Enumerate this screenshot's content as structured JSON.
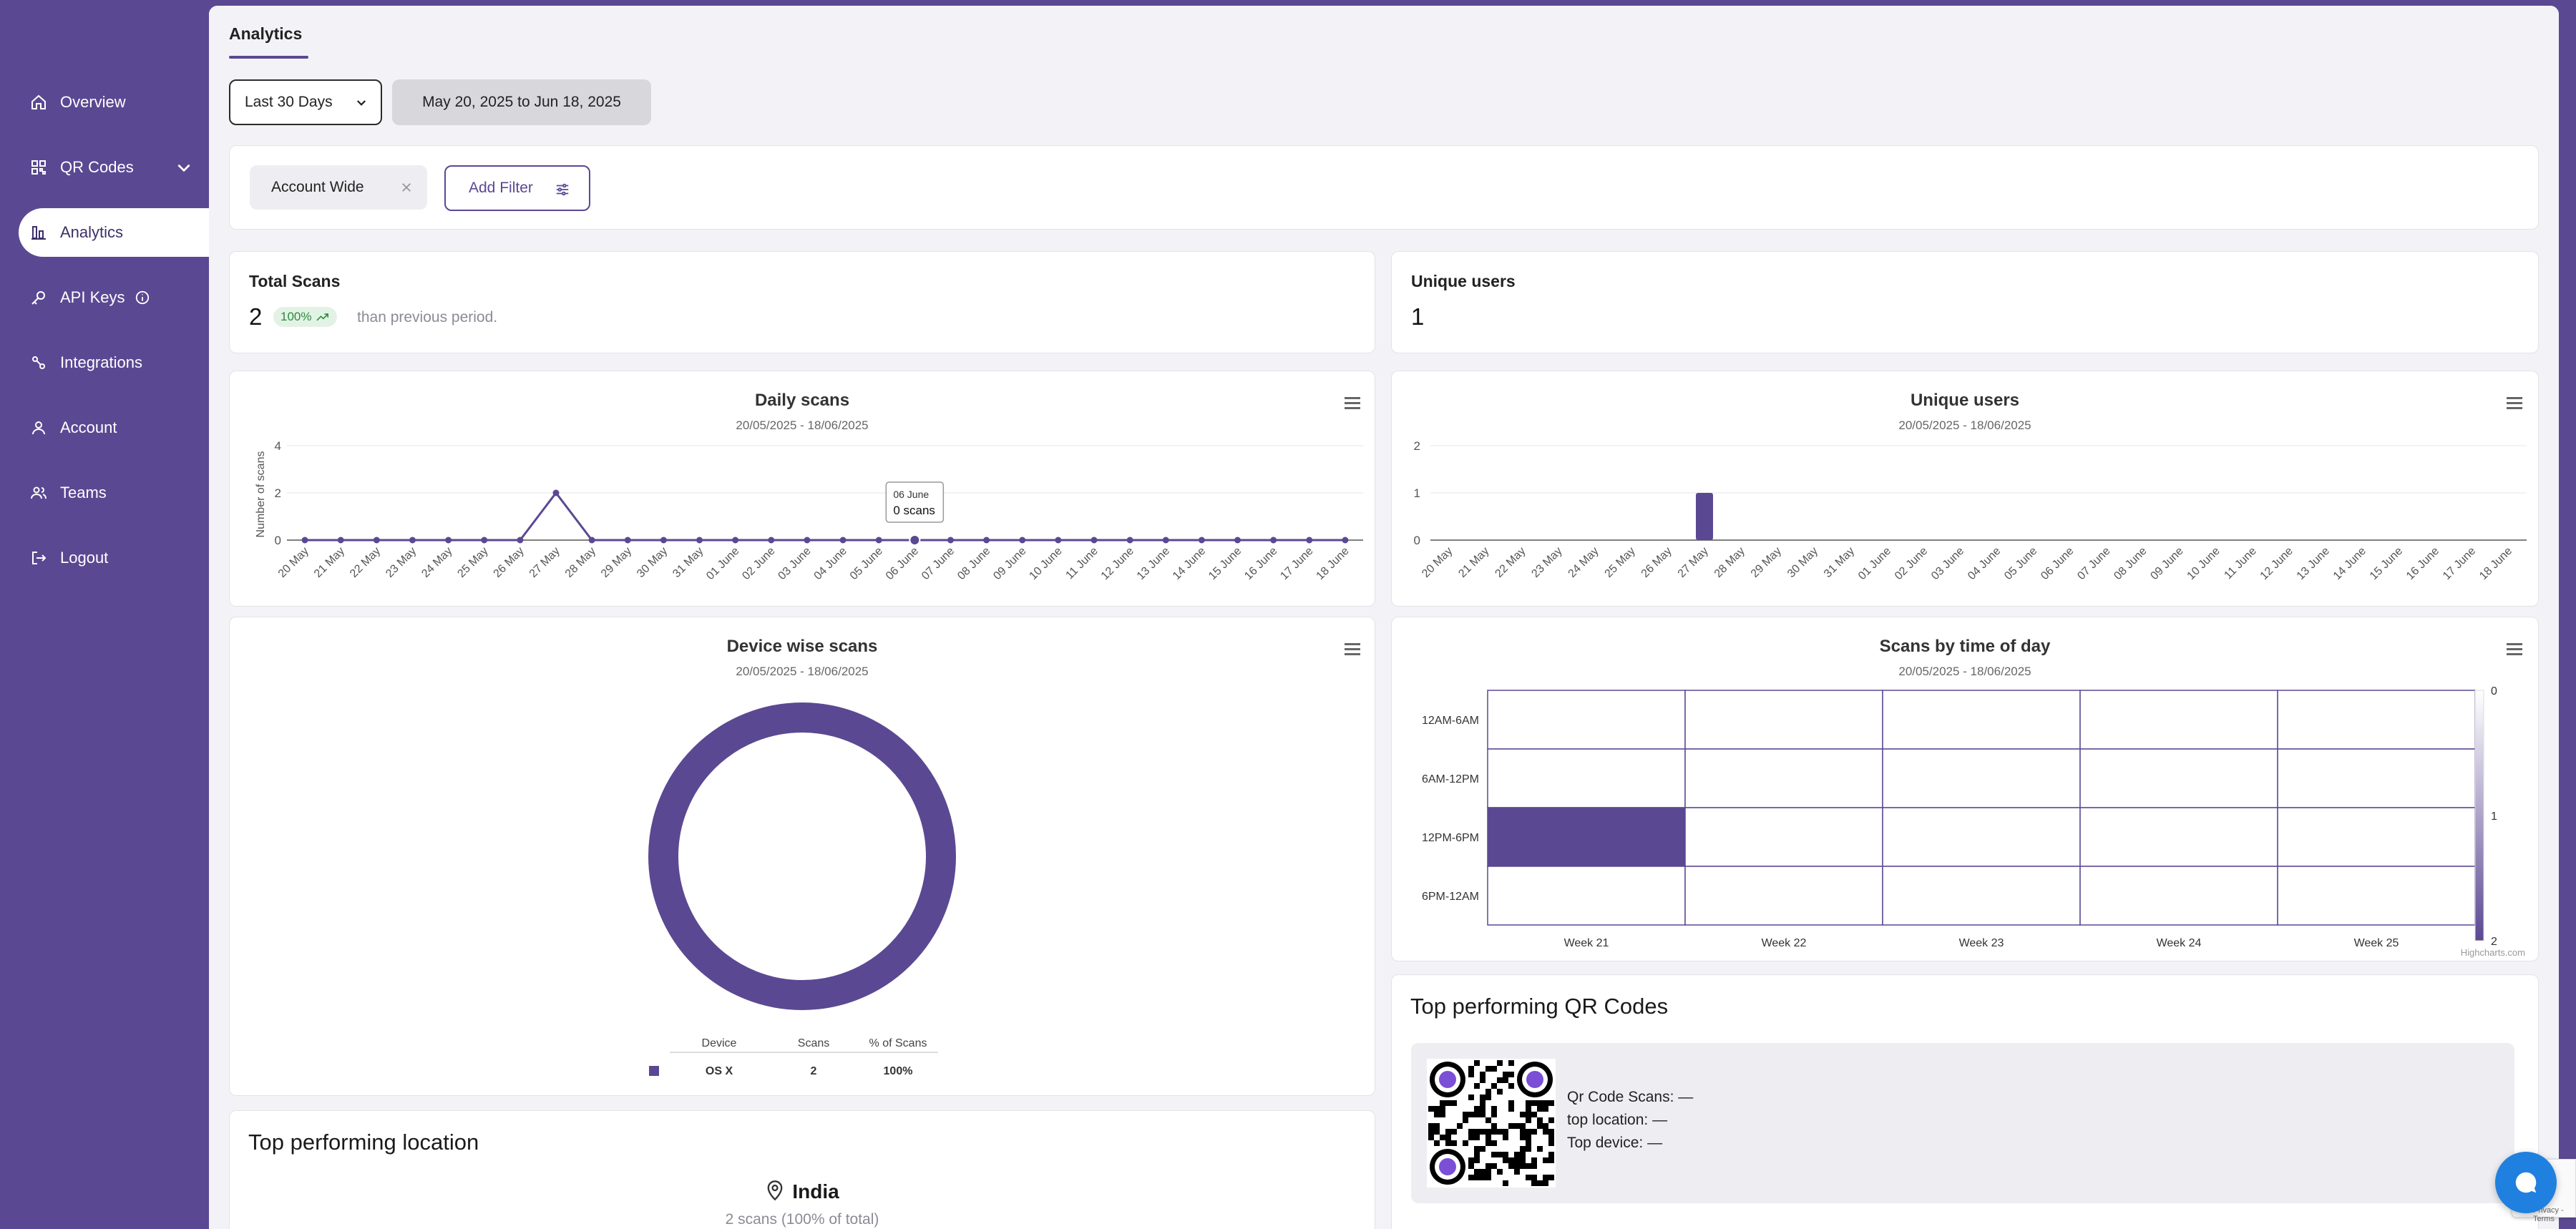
{
  "colors": {
    "brand": "#5b4892",
    "background": "#f3f3f7",
    "badge_green": "#2c8a3a"
  },
  "sidebar": {
    "items": [
      {
        "label": "Overview",
        "icon": "home-icon",
        "active": false
      },
      {
        "label": "QR Codes",
        "icon": "qr-code-icon",
        "active": false,
        "has_dropdown": true
      },
      {
        "label": "Analytics",
        "icon": "bar-chart-icon",
        "active": true
      },
      {
        "label": "API Keys",
        "icon": "key-icon",
        "active": false,
        "has_info": true
      },
      {
        "label": "Integrations",
        "icon": "integrations-icon",
        "active": false
      },
      {
        "label": "Account",
        "icon": "user-icon",
        "active": false
      },
      {
        "label": "Teams",
        "icon": "users-icon",
        "active": false
      },
      {
        "label": "Logout",
        "icon": "logout-icon",
        "active": false
      }
    ]
  },
  "header": {
    "tab": "Analytics",
    "range_select": "Last 30 Days",
    "date_range": "May 20, 2025 to Jun 18, 2025"
  },
  "filters": {
    "chip": "Account Wide",
    "add_label": "Add Filter"
  },
  "stats": {
    "total_scans": {
      "label": "Total Scans",
      "value": "2",
      "change": "100%",
      "compare": "than previous period."
    },
    "unique_users": {
      "label": "Unique users",
      "value": "1"
    }
  },
  "charts": {
    "daily": {
      "title": "Daily scans",
      "subtitle": "20/05/2025 - 18/06/2025",
      "ylabel": "Number of scans",
      "tooltip": {
        "date": "06 June",
        "text": "0 scans"
      }
    },
    "users": {
      "title": "Unique users",
      "subtitle": "20/05/2025 - 18/06/2025"
    },
    "device": {
      "title": "Device wise scans",
      "subtitle": "20/05/2025 - 18/06/2025"
    },
    "time": {
      "title": "Scans by time of day",
      "subtitle": "20/05/2025 - 18/06/2025",
      "credit": "Highcharts.com"
    }
  },
  "chart_data": [
    {
      "type": "line",
      "title": "Daily scans",
      "subtitle": "20/05/2025 - 18/06/2025",
      "ylabel": "Number of scans",
      "ylim": [
        0,
        4
      ],
      "yticks": [
        "0",
        "2",
        "4"
      ],
      "categories": [
        "20 May",
        "21 May",
        "22 May",
        "23 May",
        "24 May",
        "25 May",
        "26 May",
        "27 May",
        "28 May",
        "29 May",
        "30 May",
        "31 May",
        "01 June",
        "02 June",
        "03 June",
        "04 June",
        "05 June",
        "06 June",
        "07 June",
        "08 June",
        "09 June",
        "10 June",
        "11 June",
        "12 June",
        "13 June",
        "14 June",
        "15 June",
        "16 June",
        "17 June",
        "18 June"
      ],
      "values": [
        0,
        0,
        0,
        0,
        0,
        0,
        0,
        2,
        0,
        0,
        0,
        0,
        0,
        0,
        0,
        0,
        0,
        0,
        0,
        0,
        0,
        0,
        0,
        0,
        0,
        0,
        0,
        0,
        0,
        0
      ],
      "grid": true
    },
    {
      "type": "bar",
      "title": "Unique users",
      "subtitle": "20/05/2025 - 18/06/2025",
      "ylim": [
        0,
        2
      ],
      "yticks": [
        "0",
        "1",
        "2"
      ],
      "categories": [
        "20 May",
        "21 May",
        "22 May",
        "23 May",
        "24 May",
        "25 May",
        "26 May",
        "27 May",
        "28 May",
        "29 May",
        "30 May",
        "31 May",
        "01 June",
        "02 June",
        "03 June",
        "04 June",
        "05 June",
        "06 June",
        "07 June",
        "08 June",
        "09 June",
        "10 June",
        "11 June",
        "12 June",
        "13 June",
        "14 June",
        "15 June",
        "16 June",
        "17 June",
        "18 June"
      ],
      "values": [
        0,
        0,
        0,
        0,
        0,
        0,
        0,
        1,
        0,
        0,
        0,
        0,
        0,
        0,
        0,
        0,
        0,
        0,
        0,
        0,
        0,
        0,
        0,
        0,
        0,
        0,
        0,
        0,
        0,
        0
      ],
      "grid": true
    },
    {
      "type": "pie",
      "title": "Device wise scans",
      "subtitle": "20/05/2025 - 18/06/2025",
      "table_headers": [
        "Device",
        "Scans",
        "% of Scans"
      ],
      "slices": [
        {
          "label": "OS X",
          "value": 2,
          "percent": "100%"
        }
      ]
    },
    {
      "type": "heatmap",
      "title": "Scans by time of day",
      "subtitle": "20/05/2025 - 18/06/2025",
      "x_categories": [
        "Week 21",
        "Week 22",
        "Week 23",
        "Week 24",
        "Week 25"
      ],
      "y_categories": [
        "12AM-6AM",
        "6AM-12PM",
        "12PM-6PM",
        "6PM-12AM"
      ],
      "values": [
        [
          0,
          0,
          0,
          0,
          0
        ],
        [
          0,
          0,
          0,
          0,
          0
        ],
        [
          2,
          0,
          0,
          0,
          0
        ],
        [
          0,
          0,
          0,
          0,
          0
        ]
      ],
      "color_axis": {
        "min": 0,
        "max": 2,
        "ticks": [
          "0",
          "1",
          "2"
        ]
      }
    }
  ],
  "top_location": {
    "title": "Top performing location",
    "name": "India",
    "detail": "2 scans (100% of total)"
  },
  "top_qr": {
    "title": "Top performing QR Codes",
    "scans_label": "Qr Code Scans: —",
    "location_label": "top location: —",
    "device_label": "Top device: —"
  },
  "recaptcha_text": "Privacy - Terms"
}
